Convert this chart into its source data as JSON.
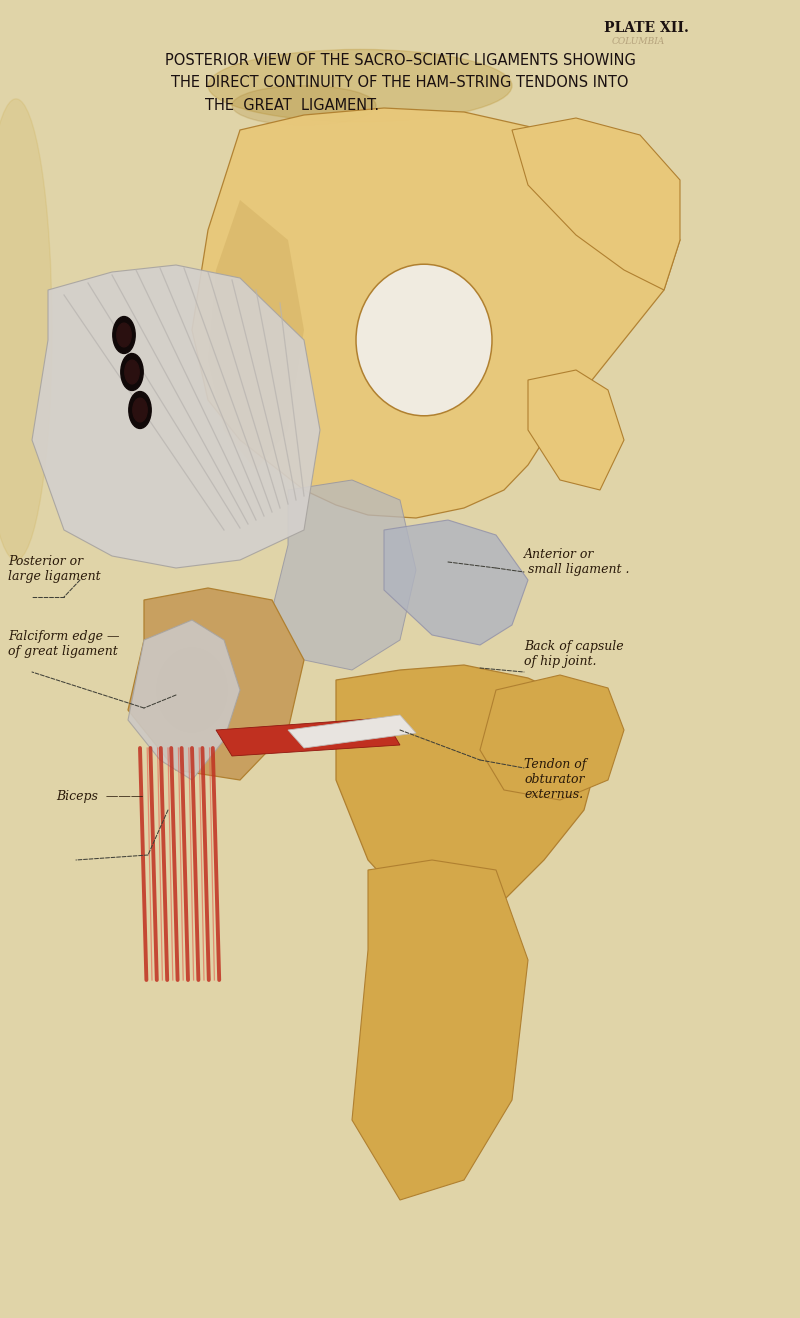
{
  "bg_color": "#e0d4a8",
  "title_line1": "POSTERIOR VIEW OF THE SACRO–SCIATIC LIGAMENTS SHOWING",
  "title_line2": "THE DIRECT CONTINUITY OF THE HAM–STRING TENDONS INTO",
  "title_line3": "THE  GREAT  LIGAMENT.",
  "plate_label": "PLATE XII.",
  "text_color": "#2a1a0a",
  "title_color": "#1a1010",
  "label_font_size": 9,
  "title_font_size": 10.5,
  "plate_font_size": 10,
  "bone_light": "#e8c87a",
  "bone_mid": "#d4a84a",
  "bone_dark": "#b08030",
  "lig_white": "#d8d4cc",
  "muscle_red": "#c03020",
  "muscle_red2": "#d84030"
}
